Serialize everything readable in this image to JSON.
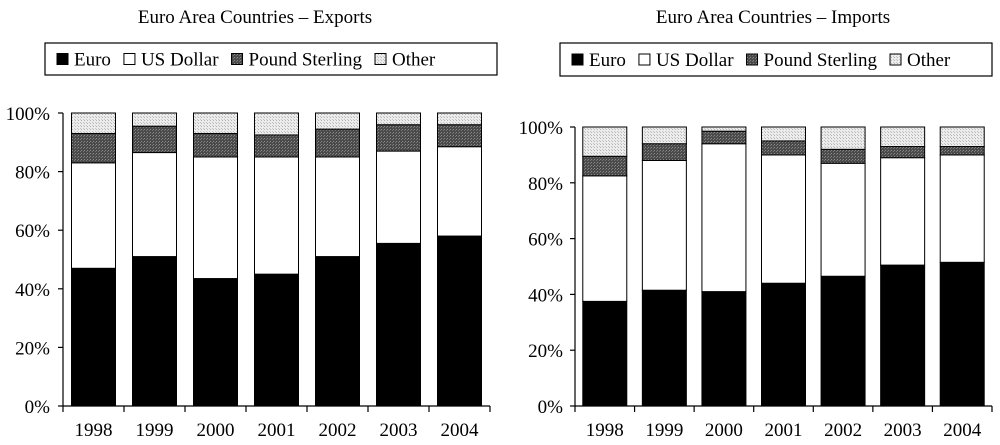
{
  "chart_data": [
    {
      "type": "bar",
      "stacked": true,
      "title": "Euro Area Countries – Exports",
      "categories": [
        "1998",
        "1999",
        "2000",
        "2001",
        "2002",
        "2003",
        "2004"
      ],
      "series": [
        {
          "name": "Euro",
          "values": [
            47,
            51,
            43.5,
            45,
            51,
            55.5,
            58
          ]
        },
        {
          "name": "US Dollar",
          "values": [
            36,
            35.5,
            41.5,
            40,
            34,
            31.5,
            30.5
          ]
        },
        {
          "name": "Pound Sterling",
          "values": [
            10,
            9,
            8,
            7.5,
            9.5,
            9,
            7.5
          ]
        },
        {
          "name": "Other",
          "values": [
            7,
            4.5,
            7,
            7.5,
            5.5,
            4,
            4
          ]
        }
      ],
      "yticks": [
        "0%",
        "20%",
        "40%",
        "60%",
        "80%",
        "100%"
      ],
      "ylim": [
        0,
        100
      ],
      "legend_position": "top",
      "grid": false
    },
    {
      "type": "bar",
      "stacked": true,
      "title": "Euro Area Countries – Imports",
      "categories": [
        "1998",
        "1999",
        "2000",
        "2001",
        "2002",
        "2003",
        "2004"
      ],
      "series": [
        {
          "name": "Euro",
          "values": [
            37.5,
            41.5,
            41,
            44,
            46.5,
            50.5,
            51.5
          ]
        },
        {
          "name": "US Dollar",
          "values": [
            45,
            46.5,
            53,
            46,
            40.5,
            38.5,
            38.5
          ]
        },
        {
          "name": "Pound Sterling",
          "values": [
            7,
            6,
            4.5,
            5,
            5,
            4,
            3
          ]
        },
        {
          "name": "Other",
          "values": [
            10.5,
            6,
            1.5,
            5,
            8,
            7,
            7
          ]
        }
      ],
      "yticks": [
        "0%",
        "20%",
        "40%",
        "60%",
        "80%",
        "100%"
      ],
      "ylim": [
        0,
        100
      ],
      "legend_position": "top",
      "grid": false
    }
  ],
  "styles": {
    "Euro": "#000000",
    "US Dollar": "#ffffff",
    "Pound Sterling": "#555555",
    "Other": "#e6e6e6"
  }
}
